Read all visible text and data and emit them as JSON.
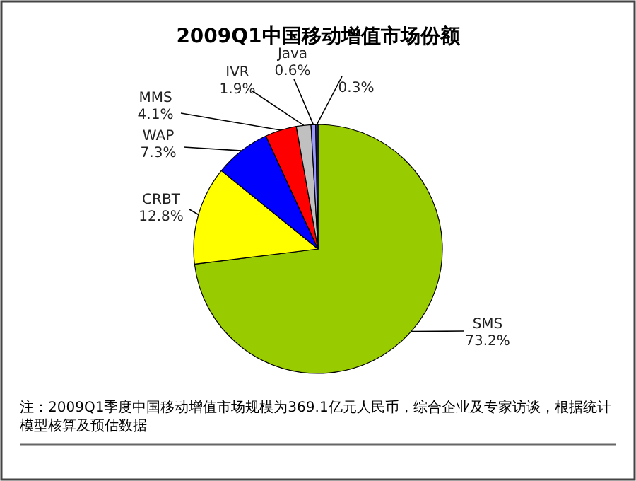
{
  "chart_data": {
    "type": "pie",
    "title": "2009Q1中国移动增值市场份额",
    "categories": [
      "SMS",
      "CRBT",
      "WAP",
      "MMS",
      "IVR",
      "Java",
      null
    ],
    "values": [
      73.2,
      12.8,
      7.3,
      4.1,
      1.9,
      0.6,
      0.3
    ],
    "colors": [
      "#99cc00",
      "#ffff00",
      "#0000ff",
      "#ff0000",
      "#c0c0c0",
      "#9999ff",
      "#333399"
    ],
    "value_labels": [
      "73.2%",
      "12.8%",
      "7.3%",
      "4.1%",
      "1.9%",
      "0.6%",
      "0.3%"
    ],
    "annotations": [
      "注：2009Q1季度中国移动增值市场规模为369.1亿元人民币，综合企业及专家访谈，根据统计模型核算及预估数据"
    ]
  }
}
